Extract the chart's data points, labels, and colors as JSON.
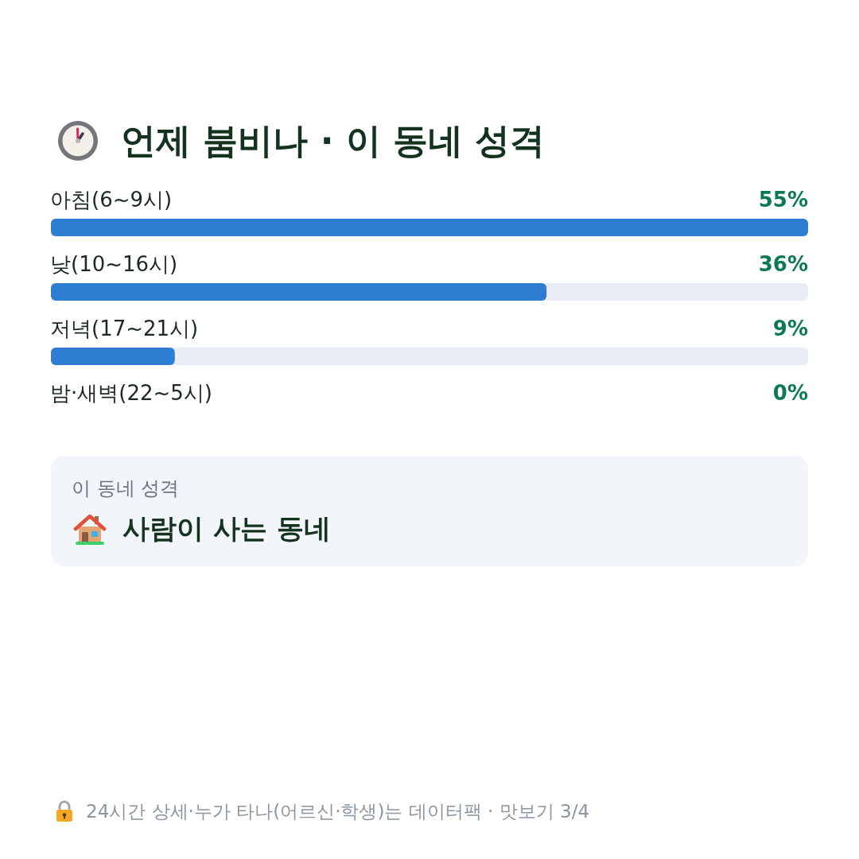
{
  "chart_data": {
    "type": "bar",
    "orientation": "horizontal",
    "title": "언제 붐비나 · 이 동네 성격",
    "categories": [
      "아침(6~9시)",
      "낮(10~16시)",
      "저녁(17~21시)",
      "밤·새벽(22~5시)"
    ],
    "values": [
      55,
      36,
      9,
      0
    ],
    "value_labels": [
      "55%",
      "36%",
      "9%",
      "0%"
    ],
    "color": "#2d7dd2",
    "annotations": [
      "이 동네 성격",
      "사람이 사는 동네",
      "24시간 상세·누가 타나(어르신·학생)는 데이터팩 · 맛보기 3/4"
    ]
  }
}
